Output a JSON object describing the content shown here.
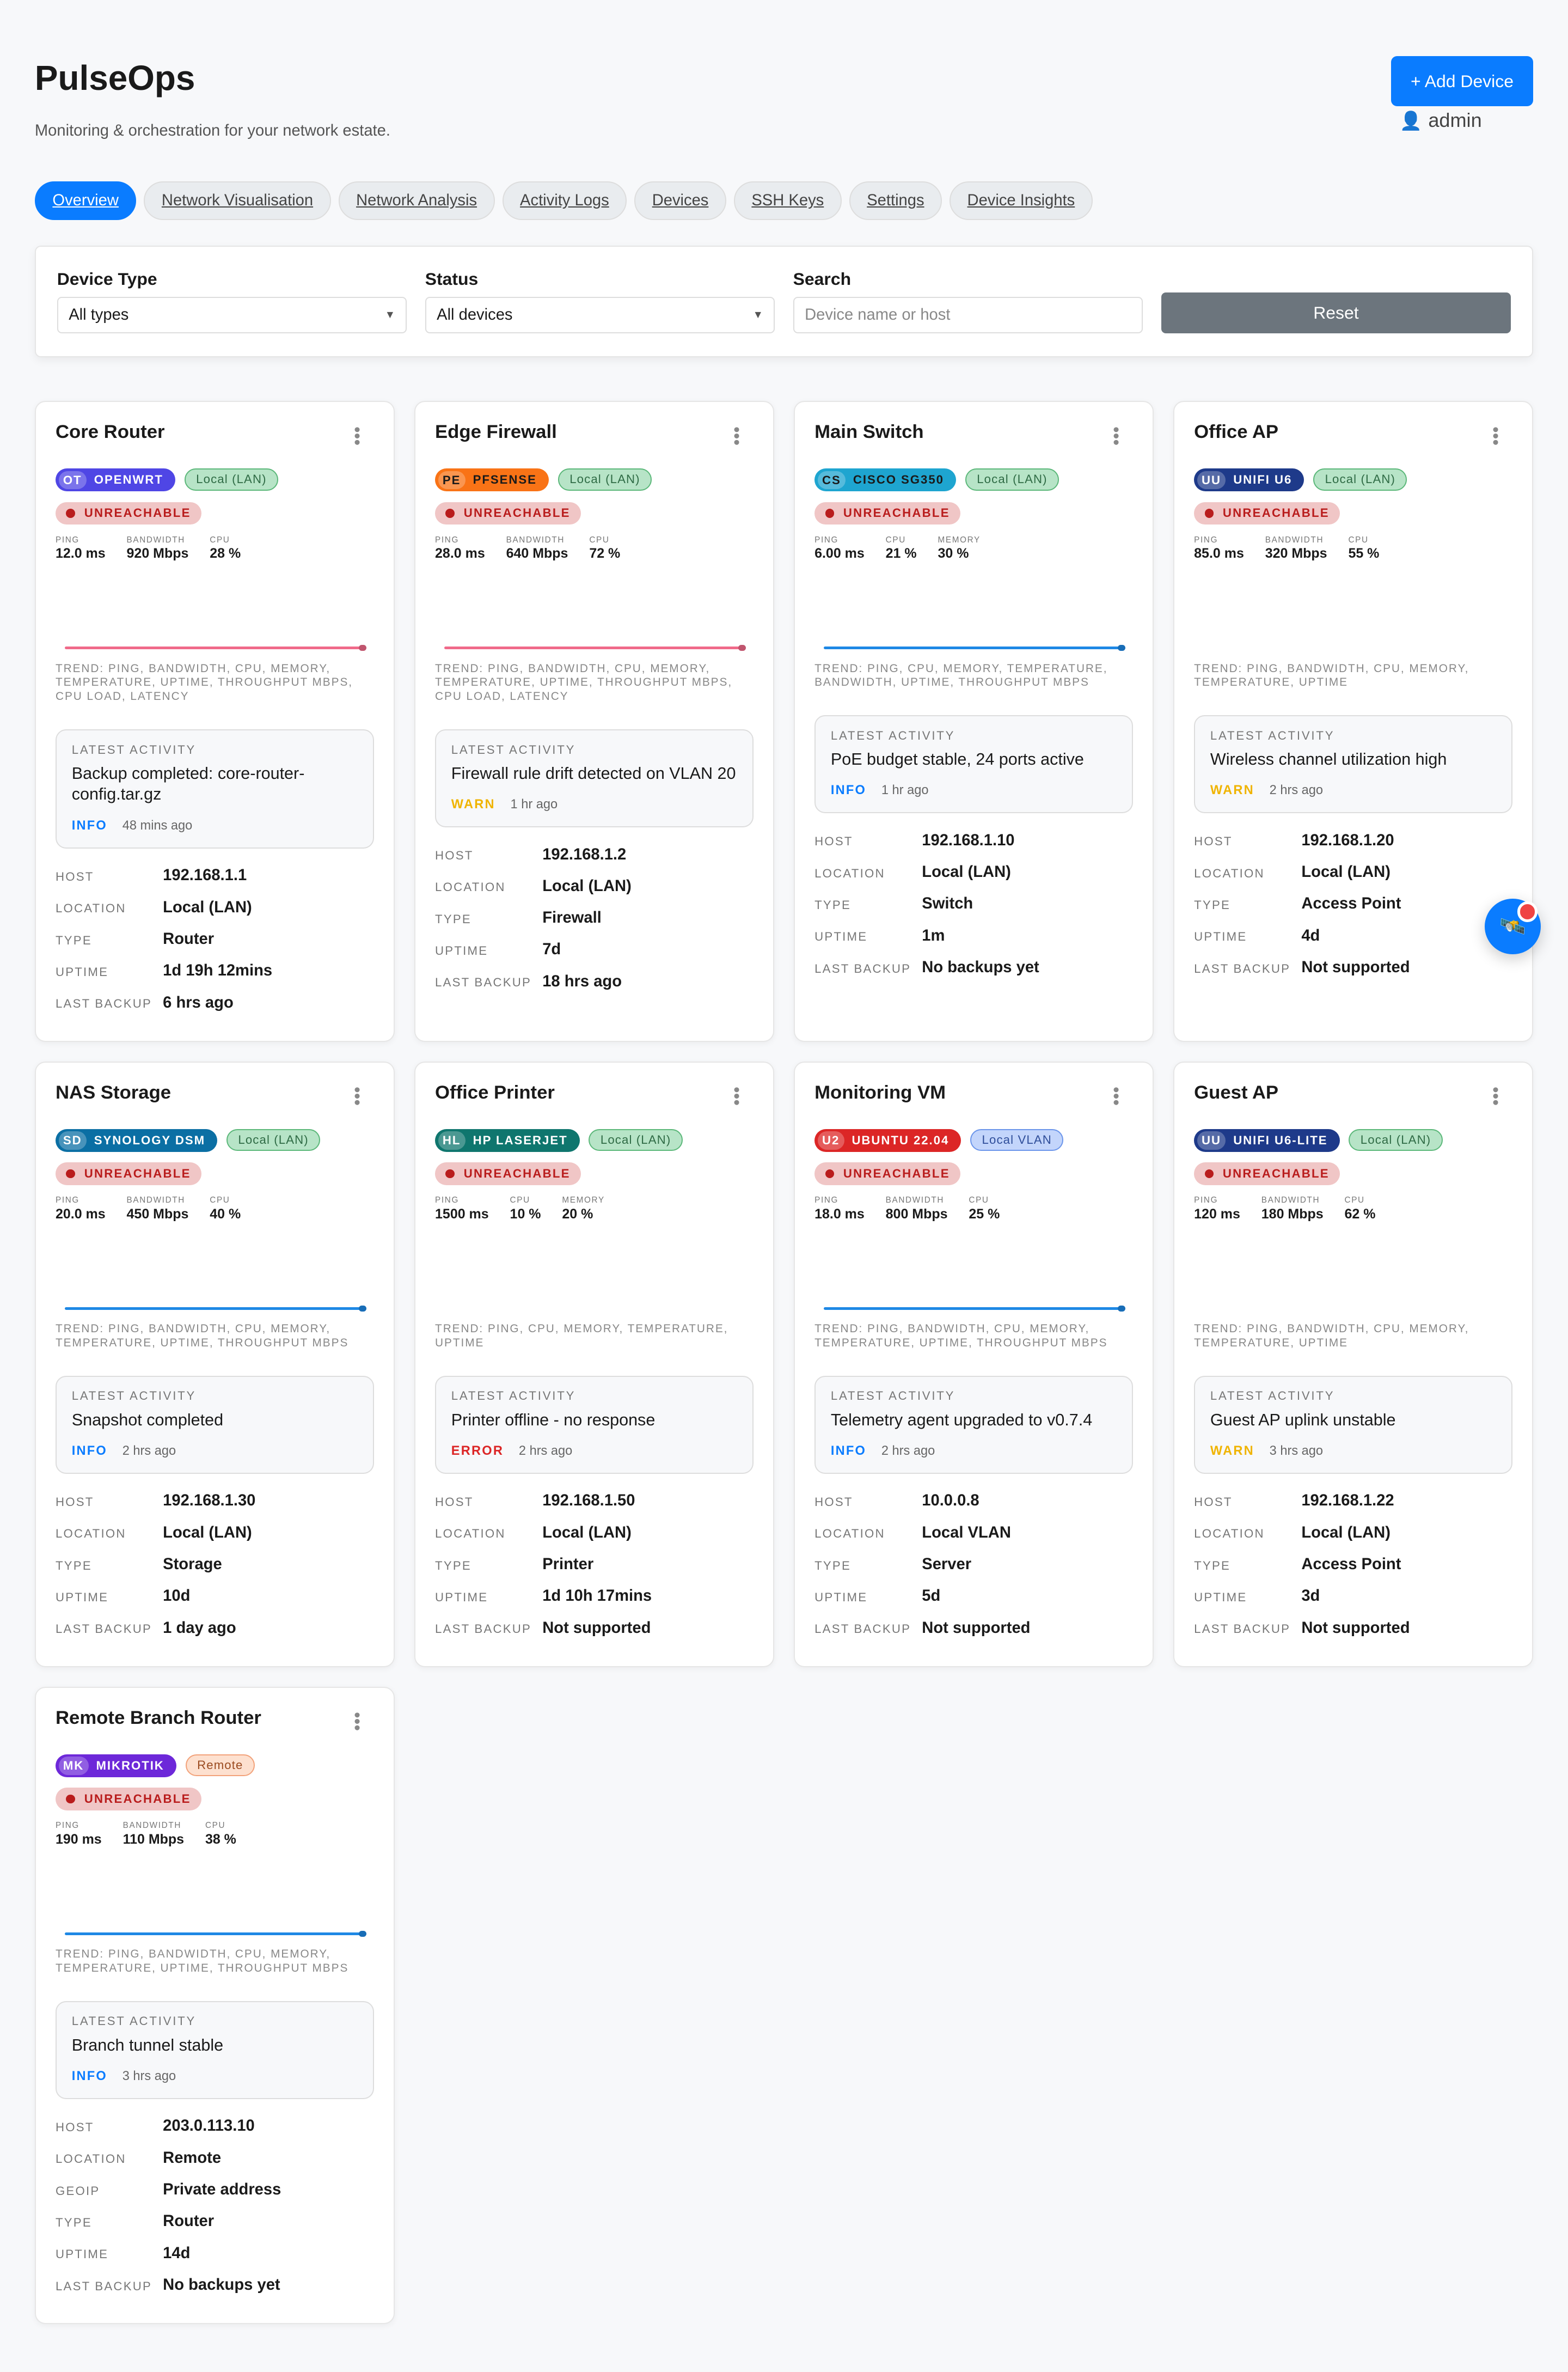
{
  "header": {
    "title": "PulseOps",
    "subtitle": "Monitoring & orchestration for your network estate.",
    "add_device_label": "Add Device",
    "add_icon": "+",
    "user": "admin",
    "user_icon": "👤"
  },
  "tabs": [
    {
      "label": "Overview",
      "active": true
    },
    {
      "label": "Network Visualisation"
    },
    {
      "label": "Network Analysis"
    },
    {
      "label": "Activity Logs"
    },
    {
      "label": "Devices"
    },
    {
      "label": "SSH Keys"
    },
    {
      "label": "Settings"
    },
    {
      "label": "Device Insights"
    }
  ],
  "filters": {
    "device_type_label": "Device Type",
    "device_type_value": "All types",
    "status_label": "Status",
    "status_value": "All devices",
    "search_label": "Search",
    "search_placeholder": "Device name or host",
    "reset_label": "Reset"
  },
  "status_label": "UNREACHABLE",
  "activity_label": "LATEST ACTIVITY",
  "metric_labels": {
    "ping": "PING",
    "bandwidth": "BANDWIDTH",
    "cpu": "CPU",
    "memory": "MEMORY"
  },
  "colors": {
    "accent": "#0a7cff",
    "info": "#0a7cff",
    "warn": "#f0b400",
    "error": "#dc2626",
    "trend_pink": "#f06a8a",
    "trend_blue": "#1e88e5"
  },
  "devices": [
    {
      "name": "Core Router",
      "os_abbr": "OT",
      "os": "OPENWRT",
      "os_color": "#4f46e5",
      "os_text": "#fff",
      "location_badge": "Local (LAN)",
      "loc_style": "lan",
      "metrics": [
        [
          "PING",
          "12.0 ms"
        ],
        [
          "BANDWIDTH",
          "920 Mbps"
        ],
        [
          "CPU",
          "28 %"
        ]
      ],
      "trend_color": "#f06a8a",
      "trend": "Trend: ping, bandwidth, cpu, memory, temperature, uptime, throughput Mbps, cpu load, latency",
      "activity": "Backup completed: core-router-config.tar.gz",
      "severity": "INFO",
      "activity_time": "48 mins ago",
      "details": [
        [
          "HOST",
          "192.168.1.1"
        ],
        [
          "LOCATION",
          "Local (LAN)"
        ],
        [
          "TYPE",
          "Router"
        ],
        [
          "UPTIME",
          "1d 19h 12mins"
        ],
        [
          "LAST BACKUP",
          "6 hrs ago"
        ]
      ]
    },
    {
      "name": "Edge Firewall",
      "os_abbr": "PE",
      "os": "PFSENSE",
      "os_color": "#f97316",
      "os_text": "#1a1a1a",
      "location_badge": "Local (LAN)",
      "loc_style": "lan",
      "metrics": [
        [
          "PING",
          "28.0 ms"
        ],
        [
          "BANDWIDTH",
          "640 Mbps"
        ],
        [
          "CPU",
          "72 %"
        ]
      ],
      "trend_color": "#f06a8a",
      "trend": "Trend: ping, bandwidth, cpu, memory, temperature, uptime, throughput Mbps, cpu load, latency",
      "activity": "Firewall rule drift detected on VLAN 20",
      "severity": "WARN",
      "activity_time": "1 hr ago",
      "details": [
        [
          "HOST",
          "192.168.1.2"
        ],
        [
          "LOCATION",
          "Local (LAN)"
        ],
        [
          "TYPE",
          "Firewall"
        ],
        [
          "UPTIME",
          "7d"
        ],
        [
          "LAST BACKUP",
          "18 hrs ago"
        ]
      ]
    },
    {
      "name": "Main Switch",
      "os_abbr": "CS",
      "os": "CISCO SG350",
      "os_color": "#1ea5d0",
      "os_text": "#1a1a1a",
      "location_badge": "Local (LAN)",
      "loc_style": "lan",
      "metrics": [
        [
          "PING",
          "6.00 ms"
        ],
        [
          "CPU",
          "21 %"
        ],
        [
          "MEMORY",
          "30 %"
        ]
      ],
      "trend_color": "#1e88e5",
      "trend": "Trend: ping, cpu, memory, temperature, bandwidth, uptime, throughput Mbps",
      "activity": "PoE budget stable, 24 ports active",
      "severity": "INFO",
      "activity_time": "1 hr ago",
      "details": [
        [
          "HOST",
          "192.168.1.10"
        ],
        [
          "LOCATION",
          "Local (LAN)"
        ],
        [
          "TYPE",
          "Switch"
        ],
        [
          "UPTIME",
          "1m"
        ],
        [
          "LAST BACKUP",
          "No backups yet"
        ]
      ]
    },
    {
      "name": "Office AP",
      "os_abbr": "UU",
      "os": "UNIFI U6",
      "os_color": "#1e3a8a",
      "os_text": "#fff",
      "location_badge": "Local (LAN)",
      "loc_style": "lan",
      "metrics": [
        [
          "PING",
          "85.0 ms"
        ],
        [
          "BANDWIDTH",
          "320 Mbps"
        ],
        [
          "CPU",
          "55 %"
        ]
      ],
      "trend_color": "",
      "trend": "Trend: ping, bandwidth, cpu, memory, temperature, uptime",
      "activity": "Wireless channel utilization high",
      "severity": "WARN",
      "activity_time": "2 hrs ago",
      "details": [
        [
          "HOST",
          "192.168.1.20"
        ],
        [
          "LOCATION",
          "Local (LAN)"
        ],
        [
          "TYPE",
          "Access Point"
        ],
        [
          "UPTIME",
          "4d"
        ],
        [
          "LAST BACKUP",
          "Not supported"
        ]
      ]
    },
    {
      "name": "NAS Storage",
      "os_abbr": "SD",
      "os": "SYNOLOGY DSM",
      "os_color": "#0b6fa4",
      "os_text": "#fff",
      "location_badge": "Local (LAN)",
      "loc_style": "lan",
      "metrics": [
        [
          "PING",
          "20.0 ms"
        ],
        [
          "BANDWIDTH",
          "450 Mbps"
        ],
        [
          "CPU",
          "40 %"
        ]
      ],
      "trend_color": "#1e88e5",
      "trend": "Trend: ping, bandwidth, cpu, memory, temperature, uptime, throughput Mbps",
      "activity": "Snapshot completed",
      "severity": "INFO",
      "activity_time": "2 hrs ago",
      "details": [
        [
          "HOST",
          "192.168.1.30"
        ],
        [
          "LOCATION",
          "Local (LAN)"
        ],
        [
          "TYPE",
          "Storage"
        ],
        [
          "UPTIME",
          "10d"
        ],
        [
          "LAST BACKUP",
          "1 day ago"
        ]
      ]
    },
    {
      "name": "Office Printer",
      "os_abbr": "HL",
      "os": "HP LASERJET",
      "os_color": "#0f766e",
      "os_text": "#fff",
      "location_badge": "Local (LAN)",
      "loc_style": "lan",
      "metrics": [
        [
          "PING",
          "1500 ms"
        ],
        [
          "CPU",
          "10 %"
        ],
        [
          "MEMORY",
          "20 %"
        ]
      ],
      "trend_color": "",
      "trend": "Trend: ping, cpu, memory, temperature, uptime",
      "activity": "Printer offline - no response",
      "severity": "ERROR",
      "activity_time": "2 hrs ago",
      "details": [
        [
          "HOST",
          "192.168.1.50"
        ],
        [
          "LOCATION",
          "Local (LAN)"
        ],
        [
          "TYPE",
          "Printer"
        ],
        [
          "UPTIME",
          "1d 10h 17mins"
        ],
        [
          "LAST BACKUP",
          "Not supported"
        ]
      ]
    },
    {
      "name": "Monitoring VM",
      "os_abbr": "U2",
      "os": "UBUNTU 22.04",
      "os_color": "#dc2626",
      "os_text": "#fff",
      "location_badge": "Local VLAN",
      "loc_style": "vlan",
      "metrics": [
        [
          "PING",
          "18.0 ms"
        ],
        [
          "BANDWIDTH",
          "800 Mbps"
        ],
        [
          "CPU",
          "25 %"
        ]
      ],
      "trend_color": "#1e88e5",
      "trend": "Trend: ping, bandwidth, cpu, memory, temperature, uptime, throughput Mbps",
      "activity": "Telemetry agent upgraded to v0.7.4",
      "severity": "INFO",
      "activity_time": "2 hrs ago",
      "details": [
        [
          "HOST",
          "10.0.0.8"
        ],
        [
          "LOCATION",
          "Local VLAN"
        ],
        [
          "TYPE",
          "Server"
        ],
        [
          "UPTIME",
          "5d"
        ],
        [
          "LAST BACKUP",
          "Not supported"
        ]
      ]
    },
    {
      "name": "Guest AP",
      "os_abbr": "UU",
      "os": "UNIFI U6-LITE",
      "os_color": "#1e3a8a",
      "os_text": "#fff",
      "location_badge": "Local (LAN)",
      "loc_style": "lan",
      "metrics": [
        [
          "PING",
          "120 ms"
        ],
        [
          "BANDWIDTH",
          "180 Mbps"
        ],
        [
          "CPU",
          "62 %"
        ]
      ],
      "trend_color": "",
      "trend": "Trend: ping, bandwidth, cpu, memory, temperature, uptime",
      "activity": "Guest AP uplink unstable",
      "severity": "WARN",
      "activity_time": "3 hrs ago",
      "details": [
        [
          "HOST",
          "192.168.1.22"
        ],
        [
          "LOCATION",
          "Local (LAN)"
        ],
        [
          "TYPE",
          "Access Point"
        ],
        [
          "UPTIME",
          "3d"
        ],
        [
          "LAST BACKUP",
          "Not supported"
        ]
      ]
    },
    {
      "name": "Remote Branch Router",
      "os_abbr": "MK",
      "os": "MIKROTIK",
      "os_color": "#6d28d9",
      "os_text": "#fff",
      "location_badge": "Remote",
      "loc_style": "remote",
      "metrics": [
        [
          "PING",
          "190 ms"
        ],
        [
          "BANDWIDTH",
          "110 Mbps"
        ],
        [
          "CPU",
          "38 %"
        ]
      ],
      "trend_color": "#1e88e5",
      "trend": "Trend: ping, bandwidth, cpu, memory, temperature, uptime, throughput Mbps",
      "activity": "Branch tunnel stable",
      "severity": "INFO",
      "activity_time": "3 hrs ago",
      "details": [
        [
          "HOST",
          "203.0.113.10"
        ],
        [
          "LOCATION",
          "Remote"
        ],
        [
          "GEOIP",
          "Private address"
        ],
        [
          "TYPE",
          "Router"
        ],
        [
          "UPTIME",
          "14d"
        ],
        [
          "LAST BACKUP",
          "No backups yet"
        ]
      ]
    }
  ],
  "fab": {
    "icon": "🛰️"
  }
}
